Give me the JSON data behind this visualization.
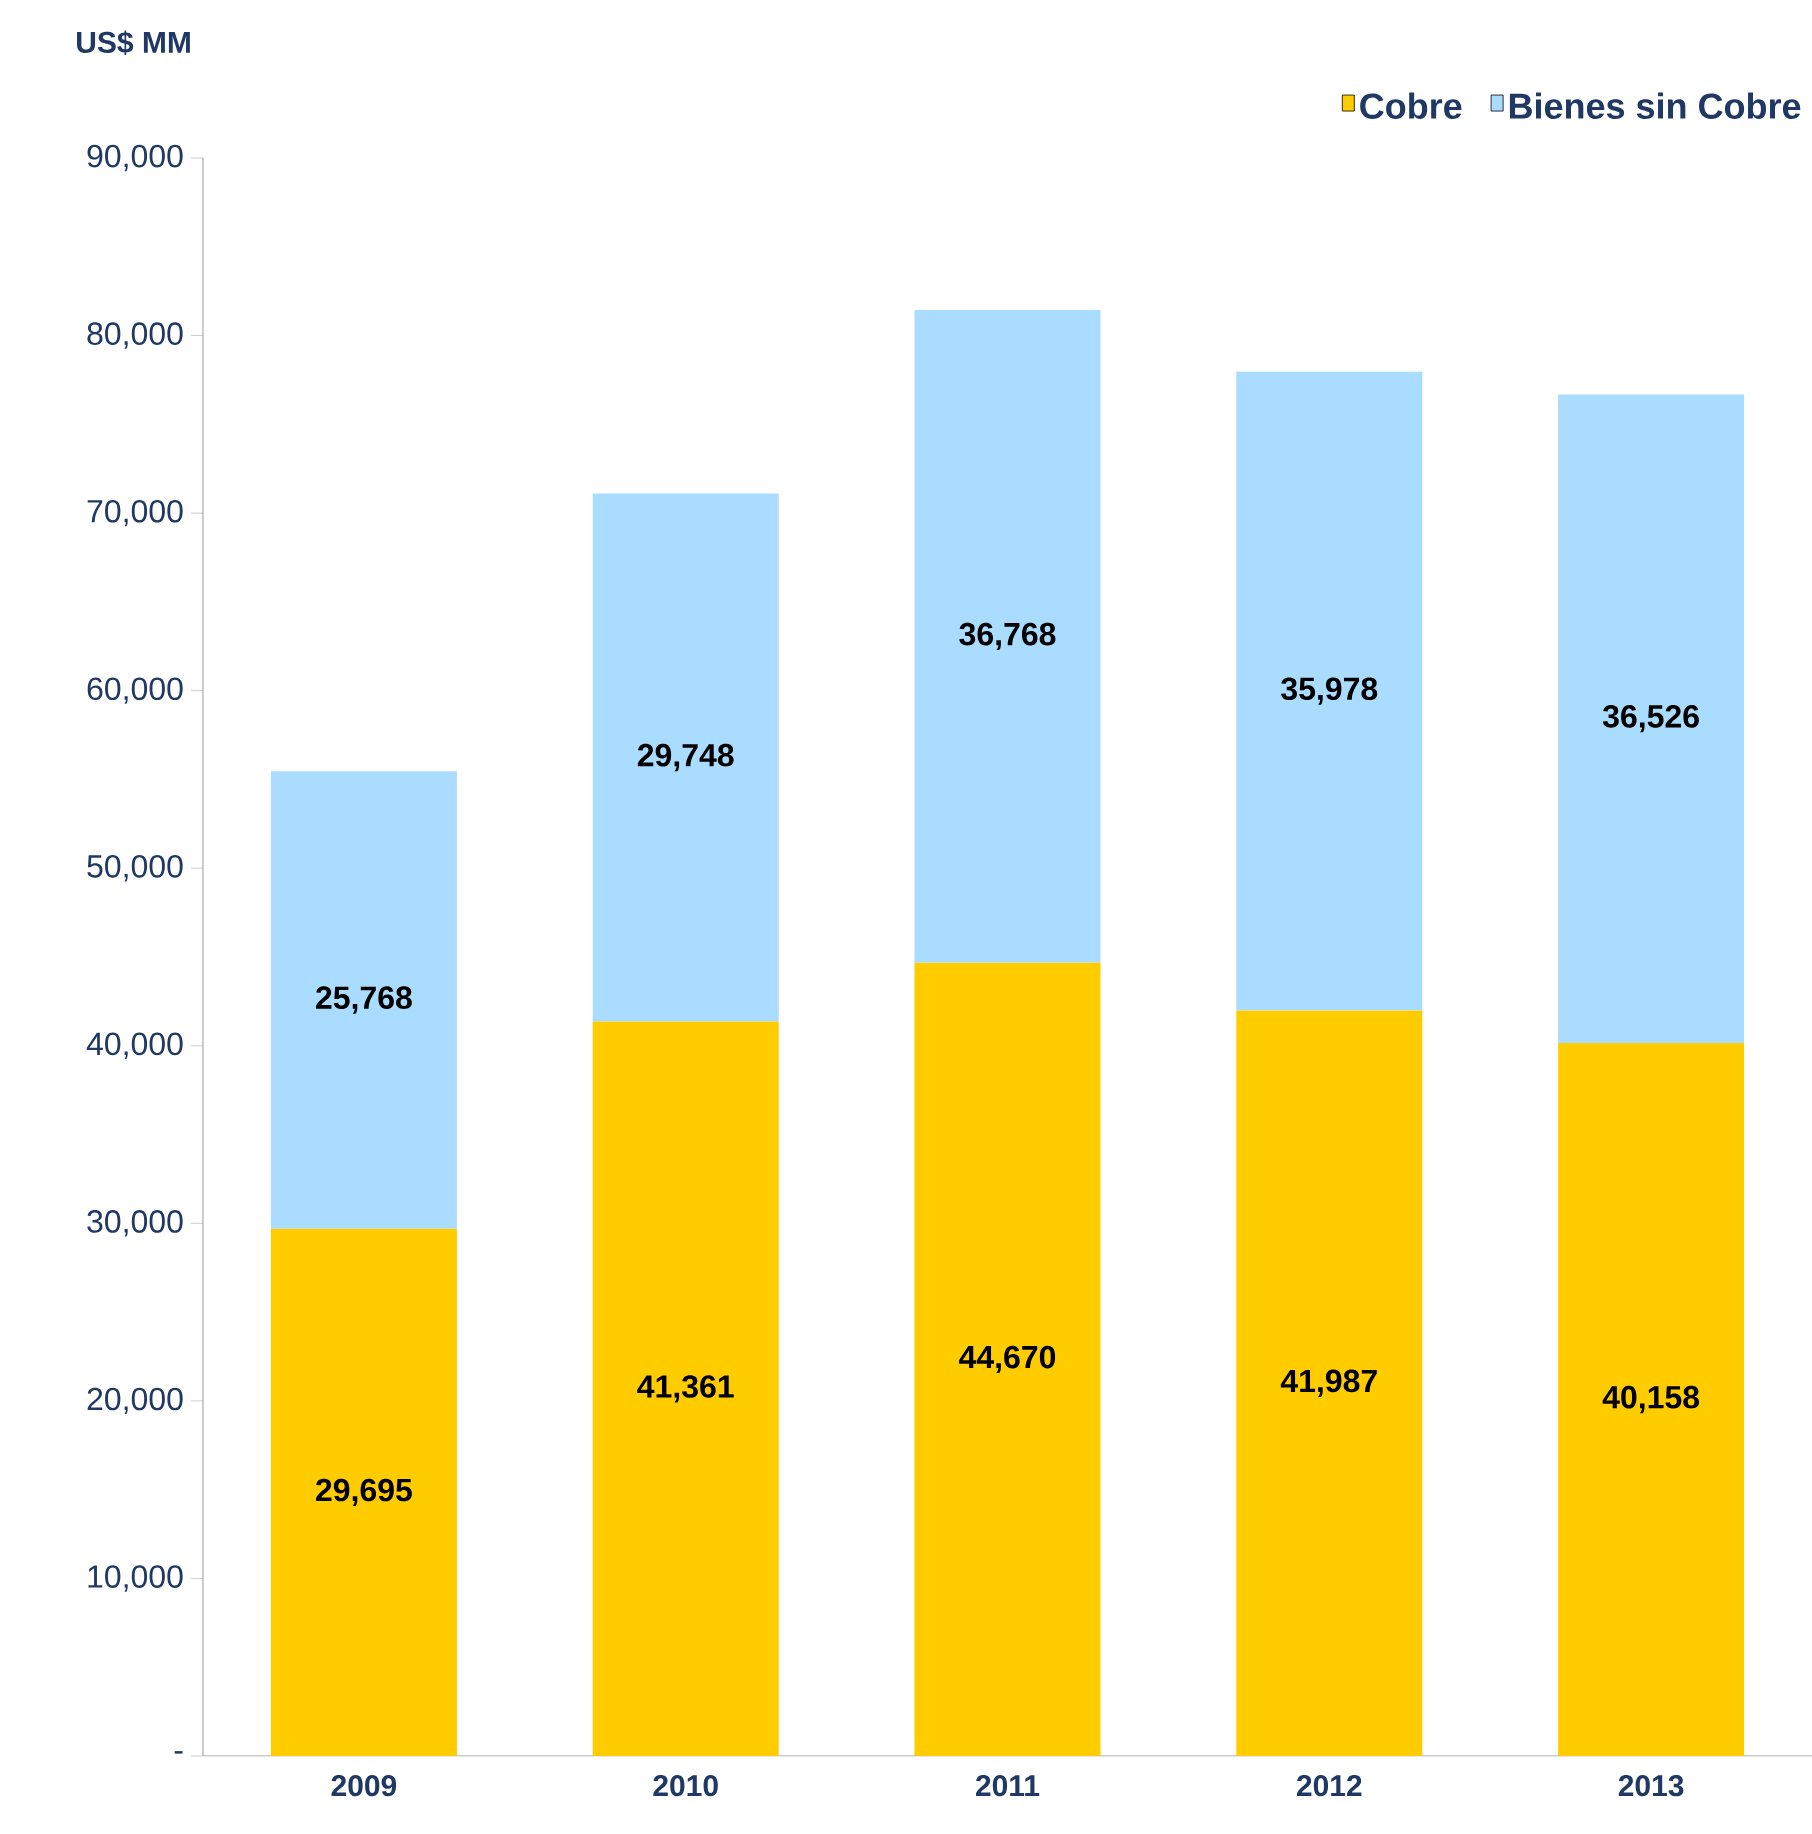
{
  "chart_data": {
    "type": "bar",
    "stacked": true,
    "ylabel": "US$ MM",
    "categories": [
      "2009",
      "2010",
      "2011",
      "2012",
      "2013"
    ],
    "series": [
      {
        "name": "Cobre",
        "color": "#ffcc00",
        "values": [
          29695,
          41361,
          44670,
          41987,
          40158
        ],
        "value_labels": [
          "29,695",
          "41,361",
          "44,670",
          "41,987",
          "40,158"
        ]
      },
      {
        "name": "Bienes sin Cobre",
        "color": "#aadcff",
        "values": [
          25768,
          29748,
          36768,
          35978,
          36526
        ],
        "value_labels": [
          "25,768",
          "29,748",
          "36,768",
          "35,978",
          "36,526"
        ]
      }
    ],
    "ylim": [
      0,
      90000
    ],
    "yticks": [
      {
        "value": 0,
        "label": "-"
      },
      {
        "value": 10000,
        "label": "10,000"
      },
      {
        "value": 20000,
        "label": "20,000"
      },
      {
        "value": 30000,
        "label": "30,000"
      },
      {
        "value": 40000,
        "label": "40,000"
      },
      {
        "value": 50000,
        "label": "50,000"
      },
      {
        "value": 60000,
        "label": "60,000"
      },
      {
        "value": 70000,
        "label": "70,000"
      },
      {
        "value": 80000,
        "label": "80,000"
      },
      {
        "value": 90000,
        "label": "90,000"
      }
    ],
    "legend": "top right",
    "grid": false
  }
}
